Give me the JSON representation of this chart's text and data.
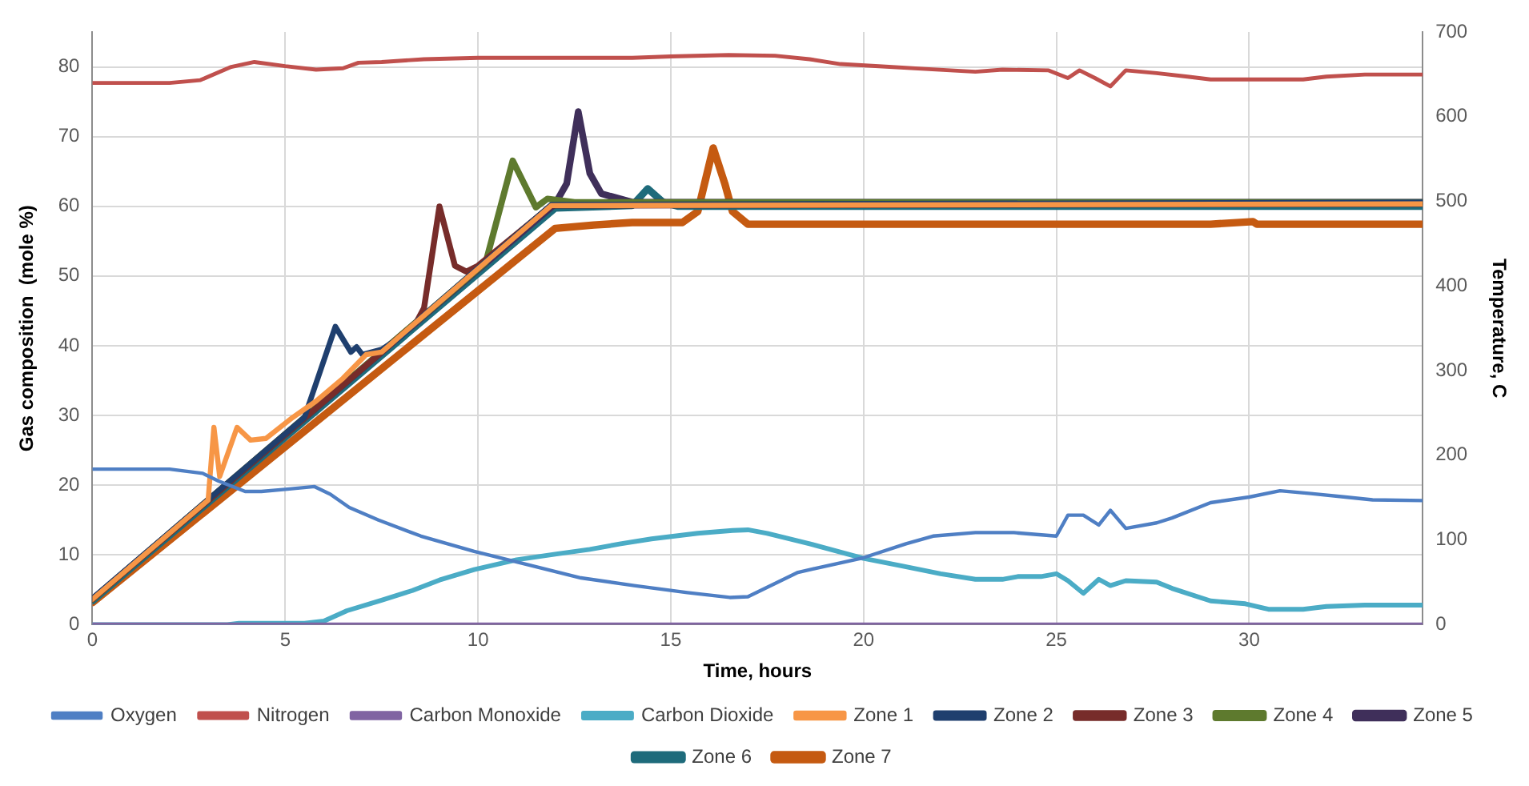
{
  "chart_data": {
    "type": "line",
    "xlabel": "Time, hours",
    "ylabel": "Gas composition  (mole %)",
    "y2label": "Temperature, C",
    "xlim": [
      0,
      34.5
    ],
    "xticks": [
      0,
      5,
      10,
      15,
      20,
      25,
      30
    ],
    "ylim": [
      0,
      85
    ],
    "yticks": [
      0,
      10,
      20,
      30,
      40,
      50,
      60,
      70,
      80
    ],
    "y2lim": [
      0,
      700
    ],
    "y2ticks": [
      0,
      100,
      200,
      300,
      400,
      500,
      600,
      700
    ],
    "grid": true,
    "legend": "bottom",
    "marker": "none",
    "line_style": "solid",
    "series": [
      {
        "name": "Oxygen",
        "color": "#4f7fc4",
        "x": [
          0,
          2,
          2.86,
          3.27,
          3.96,
          4.38,
          5,
          5.76,
          6.17,
          6.66,
          7.42,
          8.52,
          9.9,
          11.28,
          12.67,
          14.05,
          15.43,
          16.53,
          17,
          18.3,
          20,
          21.1,
          21.8,
          22.9,
          23.9,
          25,
          25.3,
          25.7,
          26.1,
          26.4,
          26.8,
          27.6,
          28,
          29,
          30,
          30.8,
          31.6,
          32.5,
          33.2,
          34.5
        ],
        "values": [
          22.3,
          22.3,
          21.7,
          20.6,
          19.1,
          19.1,
          19.4,
          19.8,
          18.7,
          16.8,
          15,
          12.7,
          10.5,
          8.6,
          6.7,
          5.6,
          4.6,
          3.9,
          4,
          7.5,
          9.6,
          11.6,
          12.7,
          13.2,
          13.2,
          12.7,
          15.7,
          15.7,
          14.3,
          16.4,
          13.8,
          14.6,
          15.3,
          17.5,
          18.3,
          19.2,
          18.8,
          18.3,
          17.9,
          17.8
        ]
      },
      {
        "name": "Nitrogen",
        "color": "#c0504d",
        "x": [
          0,
          2,
          2.8,
          3.6,
          4.2,
          5,
          5.8,
          6.5,
          6.9,
          7.5,
          8.6,
          10,
          14,
          15,
          16.5,
          17.7,
          18.6,
          19.4,
          20.4,
          21.6,
          22.9,
          23.6,
          24.8,
          25.3,
          25.6,
          26,
          26.4,
          26.8,
          27.6,
          28.4,
          29,
          30.7,
          31.4,
          32,
          33,
          34.5
        ],
        "values": [
          77.7,
          77.7,
          78.1,
          80,
          80.7,
          80.1,
          79.6,
          79.8,
          80.6,
          80.7,
          81.1,
          81.3,
          81.3,
          81.5,
          81.7,
          81.6,
          81.1,
          80.4,
          80.1,
          79.7,
          79.3,
          79.6,
          79.5,
          78.4,
          79.5,
          78.4,
          77.2,
          79.5,
          79.1,
          78.6,
          78.2,
          78.2,
          78.2,
          78.6,
          78.9,
          78.9
        ]
      },
      {
        "name": "Carbon Monoxide",
        "color": "#8064a2",
        "x": [
          0,
          34.5
        ],
        "values": [
          0,
          0
        ]
      },
      {
        "name": "Carbon Dioxide",
        "color": "#4bacc6",
        "x": [
          0,
          3.5,
          3.8,
          5.5,
          6,
          6.6,
          7.5,
          8.3,
          9,
          9.9,
          11,
          12,
          12.9,
          13.7,
          14.5,
          15.7,
          16.6,
          17,
          17.5,
          18.6,
          20,
          21,
          22,
          22.9,
          23.6,
          24,
          24.6,
          25,
          25.3,
          25.7,
          26.1,
          26.4,
          26.8,
          27.6,
          28,
          29,
          29.9,
          30.5,
          31.4,
          32,
          33,
          34.5
        ],
        "values": [
          0,
          0,
          0.2,
          0.2,
          0.5,
          2,
          3.5,
          4.9,
          6.4,
          7.9,
          9.3,
          10.1,
          10.8,
          11.6,
          12.3,
          13.1,
          13.5,
          13.6,
          13.1,
          11.6,
          9.5,
          8.4,
          7.3,
          6.5,
          6.5,
          6.9,
          6.9,
          7.3,
          6.3,
          4.5,
          6.5,
          5.6,
          6.3,
          6.1,
          5.2,
          3.4,
          3,
          2.2,
          2.2,
          2.6,
          2.8,
          2.8
        ]
      },
      {
        "name": "Zone 1",
        "color": "#f79646",
        "axis": "y2",
        "x": [
          0,
          3,
          3.15,
          3.3,
          3.75,
          4.1,
          4.5,
          5.2,
          5.8,
          6.5,
          7.1,
          7.5,
          11.9,
          34.5
        ],
        "values": [
          30,
          147,
          233,
          175,
          233,
          218,
          220,
          245,
          264,
          291,
          319,
          322,
          495,
          497
        ]
      },
      {
        "name": "Zone 2",
        "color": "#1f3f6e",
        "axis": "y2",
        "x": [
          0,
          5.5,
          6.3,
          6.7,
          6.85,
          7,
          7.5,
          8,
          8.5,
          11.9,
          34.5
        ],
        "values": [
          31,
          245,
          352,
          322,
          328,
          319,
          325,
          340,
          362,
          496,
          499
        ]
      },
      {
        "name": "Zone 3",
        "color": "#772c2a",
        "axis": "y2",
        "x": [
          0,
          8.4,
          8.6,
          9,
          9.4,
          9.7,
          10,
          11.9,
          34.5
        ],
        "values": [
          30,
          357,
          374,
          494,
          424,
          417,
          424,
          495,
          497
        ]
      },
      {
        "name": "Zone 4",
        "color": "#5e7a2e",
        "axis": "y2",
        "x": [
          0,
          10.2,
          10.9,
          11.5,
          11.8,
          12.5,
          34.5
        ],
        "values": [
          30,
          428,
          548,
          493,
          503,
          499,
          499
        ]
      },
      {
        "name": "Zone 5",
        "color": "#3f2f5a",
        "axis": "y2",
        "x": [
          0,
          12,
          12.3,
          12.6,
          12.9,
          13.2,
          14,
          34.5
        ],
        "values": [
          30,
          497,
          521,
          606,
          533,
          509,
          499,
          499
        ]
      },
      {
        "name": "Zone 6",
        "color": "#1e6b7b",
        "axis": "y2",
        "x": [
          0,
          12,
          14,
          14.4,
          14.8,
          15.2,
          34.5
        ],
        "values": [
          28,
          492,
          495,
          515,
          499,
          494,
          494
        ]
      },
      {
        "name": "Zone 7",
        "color": "#c55a11",
        "axis": "y2",
        "x": [
          0,
          12,
          13,
          14,
          15.3,
          15.7,
          16.1,
          16.4,
          16.6,
          17,
          29,
          30.1,
          30.2,
          34.5
        ],
        "values": [
          26,
          468,
          472,
          475,
          475,
          488,
          563,
          521,
          488,
          473,
          473,
          476,
          473,
          473
        ]
      }
    ]
  }
}
